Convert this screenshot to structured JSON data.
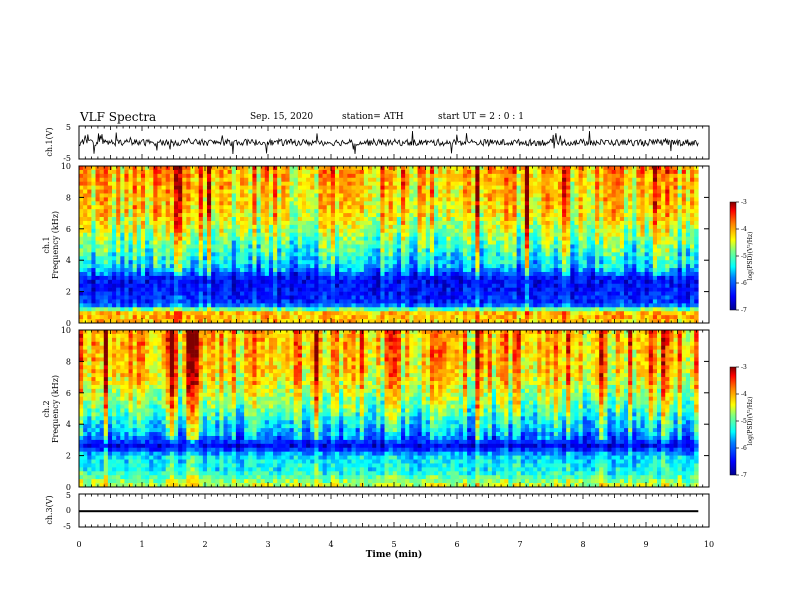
{
  "header": {
    "title": "VLF Spectra",
    "date": "Sep. 15, 2020",
    "station": "station= ATH",
    "start_ut": "start  UT =   2  : 0  : 1"
  },
  "colors": {
    "background": "#ffffff",
    "ink": "#000000",
    "colormap": [
      "#00008f",
      "#0000ff",
      "#0080ff",
      "#00ffff",
      "#80ff80",
      "#ffff00",
      "#ff8000",
      "#ff0000",
      "#800000"
    ]
  },
  "chart_data": [
    {
      "id": "ch1_waveform",
      "type": "line",
      "title": "",
      "ylabel": "ch.1(V)",
      "ylim": [
        -5,
        5
      ],
      "yticks": [
        "5",
        "-5"
      ],
      "x_range_min": [
        0,
        9.83
      ],
      "description_values": {
        "mean": 0,
        "typical_amplitude": 1.0,
        "peak_amplitude": 3.5
      }
    },
    {
      "id": "ch1_spectrogram",
      "type": "heatmap",
      "title": "",
      "ylabel": "ch.1\nFrequency (kHz)",
      "ylabel_lines": [
        "ch.1",
        "Frequency (kHz)"
      ],
      "ylim": [
        0,
        10
      ],
      "yticks": [
        "0",
        "2",
        "4",
        "6",
        "8",
        "10"
      ],
      "x_range_min": [
        0,
        9.83
      ],
      "colorbar": {
        "label": "log(PSD)(V²/Hz)",
        "range": [
          -7,
          -3
        ],
        "ticks": [
          "-3",
          "-4",
          "-5",
          "-6",
          "-7"
        ]
      },
      "band_profile_khz": [
        {
          "f": 0.0,
          "level": -4.2
        },
        {
          "f": 0.6,
          "level": -4.0
        },
        {
          "f": 1.2,
          "level": -6.2
        },
        {
          "f": 2.0,
          "level": -6.4
        },
        {
          "f": 2.8,
          "level": -6.5
        },
        {
          "f": 3.5,
          "level": -5.6
        },
        {
          "f": 5.0,
          "level": -5.0
        },
        {
          "f": 7.0,
          "level": -4.3
        },
        {
          "f": 10.0,
          "level": -4.0
        }
      ]
    },
    {
      "id": "ch2_spectrogram",
      "type": "heatmap",
      "title": "",
      "ylabel_lines": [
        "ch.2",
        "Frequency (kHz)"
      ],
      "ylim": [
        0,
        10
      ],
      "yticks": [
        "0",
        "2",
        "4",
        "6",
        "8",
        "10"
      ],
      "x_range_min": [
        0,
        9.83
      ],
      "colorbar": {
        "label": "log(PSD)(V²/Hz)",
        "range": [
          -7,
          -3
        ],
        "ticks": [
          "-3",
          "-4",
          "-5",
          "-6",
          "-7"
        ]
      },
      "band_profile_khz": [
        {
          "f": 0.0,
          "level": -4.5
        },
        {
          "f": 1.0,
          "level": -5.3
        },
        {
          "f": 2.0,
          "level": -5.5
        },
        {
          "f": 2.6,
          "level": -6.6
        },
        {
          "f": 3.2,
          "level": -5.8
        },
        {
          "f": 5.0,
          "level": -4.9
        },
        {
          "f": 7.0,
          "level": -4.2
        },
        {
          "f": 10.0,
          "level": -4.0
        }
      ]
    },
    {
      "id": "ch3_waveform",
      "type": "line",
      "title": "",
      "ylabel": "ch.3(V)",
      "ylim": [
        -5,
        5
      ],
      "yticks": [
        "5",
        "0",
        "-5"
      ],
      "x_range_min": [
        0,
        9.83
      ],
      "description_values": {
        "mean": -0.2,
        "band_halfwidth": 0.3
      }
    }
  ],
  "x_axis": {
    "label": "Time (min)",
    "range": [
      0,
      10
    ],
    "ticks": [
      "0",
      "1",
      "2",
      "3",
      "4",
      "5",
      "6",
      "7",
      "8",
      "9",
      "10"
    ]
  }
}
